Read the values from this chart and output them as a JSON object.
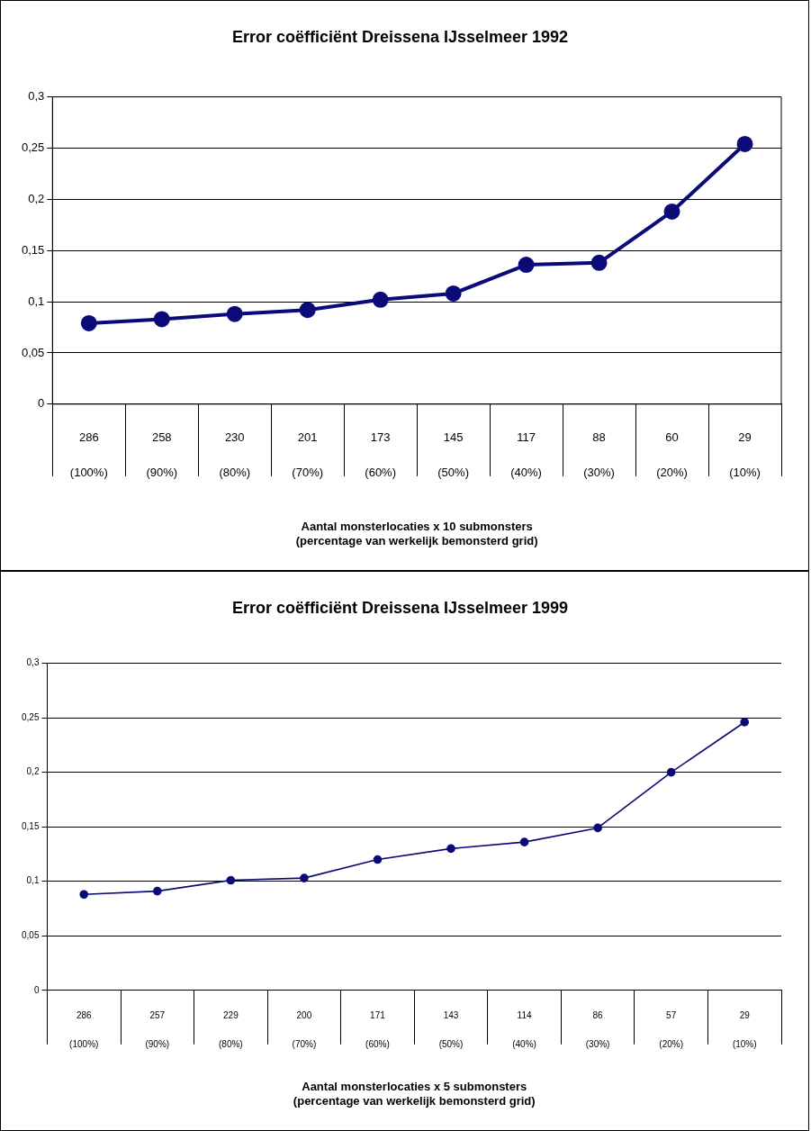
{
  "chart_data": [
    {
      "type": "line",
      "title": "Error coëfficiënt Dreissena IJsselmeer 1992",
      "xlabel": "Aantal monsterlocaties x 10 submonsters\n(percentage van werkelijk bemonsterd grid)",
      "categories": [
        "286\n(100%)",
        "258\n(90%)",
        "230\n(80%)",
        "201\n(70%)",
        "173\n(60%)",
        "145\n(50%)",
        "117\n(40%)",
        "88\n(30%)",
        "60\n(20%)",
        "29\n(10%)"
      ],
      "series": [
        {
          "color": "#0a0a78",
          "values": [
            0.079,
            0.083,
            0.088,
            0.092,
            0.102,
            0.108,
            0.136,
            0.138,
            0.188,
            0.254
          ]
        }
      ],
      "ylim": [
        0,
        0.3
      ],
      "yticks": [
        0,
        {
          "value": 0.05,
          "label": "0,05"
        },
        {
          "value": 0.1,
          "label": "0,1"
        },
        {
          "value": 0.15,
          "label": "0,15"
        },
        {
          "value": 0.2,
          "label": "0,2"
        },
        {
          "value": 0.25,
          "label": "0,25"
        },
        {
          "value": 0.3,
          "label": "0,3"
        }
      ],
      "grid": "y",
      "marker": "circle",
      "line_style": "solid",
      "legend": false
    },
    {
      "type": "line",
      "title": "Error coëfficiënt Dreissena IJsselmeer 1999",
      "xlabel": "Aantal monsterlocaties x 5 submonsters\n(percentage van werkelijk bemonsterd grid)",
      "categories": [
        "286\n(100%)",
        "257\n(90%)",
        "229\n(80%)",
        "200\n(70%)",
        "171\n(60%)",
        "143\n(50%)",
        "114\n(40%)",
        "86\n(30%)",
        "57\n(20%)",
        "29\n(10%)"
      ],
      "series": [
        {
          "color": "#0a0a78",
          "values": [
            0.088,
            0.091,
            0.101,
            0.103,
            0.12,
            0.13,
            0.136,
            0.149,
            0.2,
            0.246
          ]
        }
      ],
      "ylim": [
        0,
        0.3
      ],
      "yticks": [
        0,
        {
          "value": 0.05,
          "label": "0,05"
        },
        {
          "value": 0.1,
          "label": "0,1"
        },
        {
          "value": 0.15,
          "label": "0,15"
        },
        {
          "value": 0.2,
          "label": "0,2"
        },
        {
          "value": 0.25,
          "label": "0,25"
        },
        {
          "value": 0.3,
          "label": "0,3"
        }
      ],
      "grid": "y",
      "marker": "circle",
      "line_style": "solid",
      "legend": false
    }
  ]
}
